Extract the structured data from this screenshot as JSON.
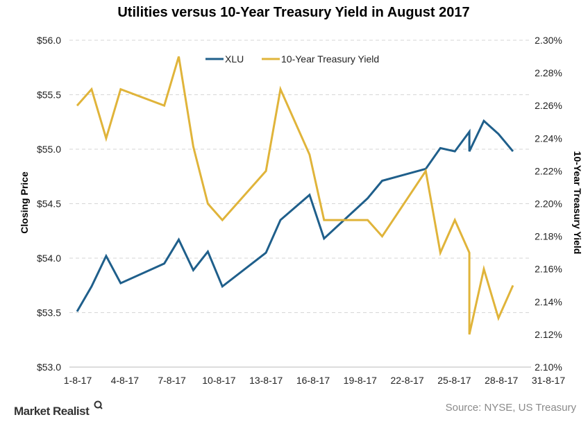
{
  "chart_data": {
    "type": "line",
    "title": "Utilities versus 10-Year Treasury Yield in August 2017",
    "ylabel": "Closing Price",
    "y2label": "10-Year Treasury Yield",
    "ylim": [
      53.0,
      56.0
    ],
    "y2lim": [
      2.1,
      2.3
    ],
    "yticks": [
      "$53.0",
      "$53.5",
      "$54.0",
      "$54.5",
      "$55.0",
      "$55.5",
      "$56.0"
    ],
    "y2ticks": [
      "2.10%",
      "2.12%",
      "2.14%",
      "2.16%",
      "2.18%",
      "2.20%",
      "2.22%",
      "2.24%",
      "2.26%",
      "2.28%",
      "2.30%"
    ],
    "xticks": [
      "1-8-17",
      "4-8-17",
      "7-8-17",
      "10-8-17",
      "13-8-17",
      "16-8-17",
      "19-8-17",
      "22-8-17",
      "25-8-17",
      "28-8-17",
      "31-8-17"
    ],
    "grid": true,
    "legend_position": "top-center",
    "series": [
      {
        "name": "XLU",
        "axis": "left",
        "color": "#1f5f8b",
        "points": [
          [
            1,
            53.51
          ],
          [
            2,
            53.74
          ],
          [
            3,
            54.02
          ],
          [
            4,
            53.77
          ],
          [
            7,
            53.95
          ],
          [
            8,
            54.17
          ],
          [
            9,
            53.89
          ],
          [
            10,
            54.06
          ],
          [
            11,
            53.74
          ],
          [
            14,
            54.05
          ],
          [
            15,
            54.35
          ],
          [
            17,
            54.58
          ],
          [
            18,
            54.18
          ],
          [
            21,
            54.55
          ],
          [
            22,
            54.71
          ],
          [
            25,
            54.82
          ],
          [
            26,
            55.01
          ],
          [
            27,
            54.98
          ],
          [
            28,
            55.16
          ],
          [
            28,
            54.98
          ],
          [
            29,
            55.26
          ],
          [
            30,
            55.14
          ],
          [
            31,
            54.98
          ]
        ]
      },
      {
        "name": "10-Year Treasury Yield",
        "axis": "right",
        "color": "#e0b43a",
        "points": [
          [
            1,
            2.26
          ],
          [
            2,
            2.27
          ],
          [
            3,
            2.24
          ],
          [
            4,
            2.27
          ],
          [
            7,
            2.26
          ],
          [
            8,
            2.29
          ],
          [
            9,
            2.235
          ],
          [
            10,
            2.2
          ],
          [
            11,
            2.19
          ],
          [
            14,
            2.22
          ],
          [
            15,
            2.27
          ],
          [
            17,
            2.23
          ],
          [
            18,
            2.19
          ],
          [
            21,
            2.19
          ],
          [
            22,
            2.18
          ],
          [
            25,
            2.22
          ],
          [
            26,
            2.17
          ],
          [
            27,
            2.19
          ],
          [
            28,
            2.17
          ],
          [
            28,
            2.12
          ],
          [
            29,
            2.16
          ],
          [
            30,
            2.13
          ],
          [
            31,
            2.15
          ]
        ]
      }
    ],
    "x_unit_note_month": "August 2017"
  },
  "source": "Source: NYSE, US Treasury",
  "logo": "Market Realist"
}
